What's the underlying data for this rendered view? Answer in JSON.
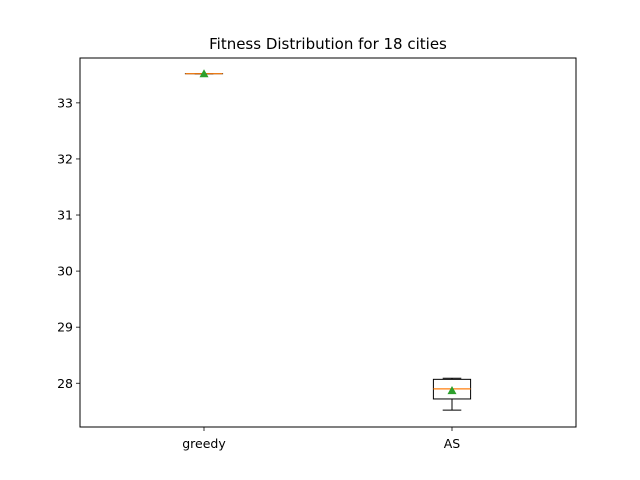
{
  "chart_data": {
    "type": "box",
    "title": "Fitness Distribution for 18 cities",
    "xlabel": "",
    "ylabel": "",
    "categories": [
      "greedy",
      "AS"
    ],
    "boxes": [
      {
        "name": "greedy",
        "whisker_low": 33.52,
        "q1": 33.52,
        "median": 33.52,
        "q3": 33.52,
        "whisker_high": 33.52,
        "mean": 33.52
      },
      {
        "name": "AS",
        "whisker_low": 27.52,
        "q1": 27.72,
        "median": 27.9,
        "q3": 28.07,
        "whisker_high": 28.09,
        "mean": 27.87
      }
    ],
    "ylim": [
      27.22,
      33.8
    ],
    "yticks": [
      28,
      29,
      30,
      31,
      32,
      33
    ],
    "grid": false,
    "colors": {
      "box": "#000000",
      "median": "#ff7f0e",
      "mean": "#2ca02c"
    }
  }
}
